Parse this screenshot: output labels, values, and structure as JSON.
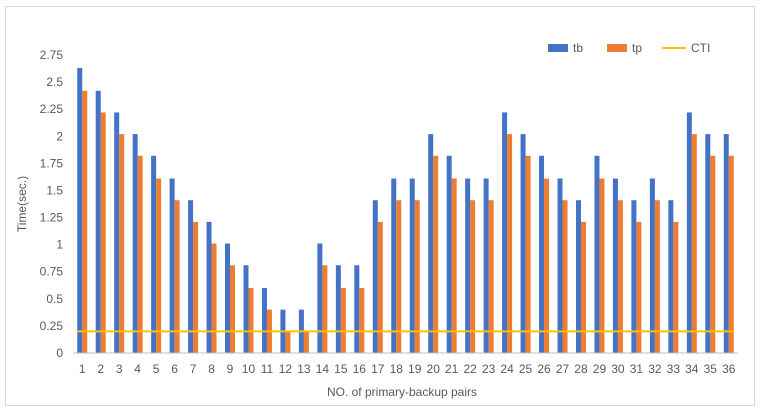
{
  "colors": {
    "tb": "#4472c4",
    "tp": "#ed7d31",
    "CTI": "#ffc000",
    "axis": "#bfbfbf",
    "text": "#595959"
  },
  "chart_data": {
    "type": "bar",
    "xlabel": "NO. of primary-backup pairs",
    "ylabel": "Time(sec.)",
    "ylim": [
      0,
      2.75
    ],
    "yticks": [
      "0",
      "0.25",
      "0.5",
      "0.75",
      "1",
      "1.25",
      "1.5",
      "1.75",
      "2",
      "2.25",
      "2.5",
      "2.75"
    ],
    "grid": false,
    "legend_position": "top-right",
    "categories": [
      "1",
      "2",
      "3",
      "4",
      "5",
      "6",
      "7",
      "8",
      "9",
      "10",
      "11",
      "12",
      "13",
      "14",
      "15",
      "16",
      "17",
      "18",
      "19",
      "20",
      "21",
      "22",
      "23",
      "24",
      "25",
      "26",
      "27",
      "28",
      "29",
      "30",
      "31",
      "32",
      "33",
      "34",
      "35",
      "36"
    ],
    "series": [
      {
        "name": "tb",
        "kind": "bar",
        "values": [
          2.63,
          2.42,
          2.22,
          2.02,
          1.82,
          1.61,
          1.41,
          1.21,
          1.01,
          0.81,
          0.6,
          0.4,
          0.4,
          1.01,
          0.81,
          0.81,
          1.41,
          1.61,
          1.61,
          2.02,
          1.82,
          1.61,
          1.61,
          2.22,
          2.02,
          1.82,
          1.61,
          1.41,
          1.82,
          1.61,
          1.41,
          1.61,
          1.41,
          2.22,
          2.02,
          2.02
        ]
      },
      {
        "name": "tp",
        "kind": "bar",
        "values": [
          2.42,
          2.22,
          2.02,
          1.82,
          1.61,
          1.41,
          1.21,
          1.01,
          0.81,
          0.6,
          0.4,
          0.2,
          0.2,
          0.81,
          0.6,
          0.6,
          1.21,
          1.41,
          1.41,
          1.82,
          1.61,
          1.41,
          1.41,
          2.02,
          1.82,
          1.61,
          1.41,
          1.21,
          1.61,
          1.41,
          1.21,
          1.41,
          1.21,
          2.02,
          1.82,
          1.82
        ]
      },
      {
        "name": "CTI",
        "kind": "line",
        "values": [
          0.2,
          0.2,
          0.2,
          0.2,
          0.2,
          0.2,
          0.2,
          0.2,
          0.2,
          0.2,
          0.2,
          0.2,
          0.2,
          0.2,
          0.2,
          0.2,
          0.2,
          0.2,
          0.2,
          0.2,
          0.2,
          0.2,
          0.2,
          0.2,
          0.2,
          0.2,
          0.2,
          0.2,
          0.2,
          0.2,
          0.2,
          0.2,
          0.2,
          0.2,
          0.2,
          0.2
        ]
      }
    ]
  }
}
